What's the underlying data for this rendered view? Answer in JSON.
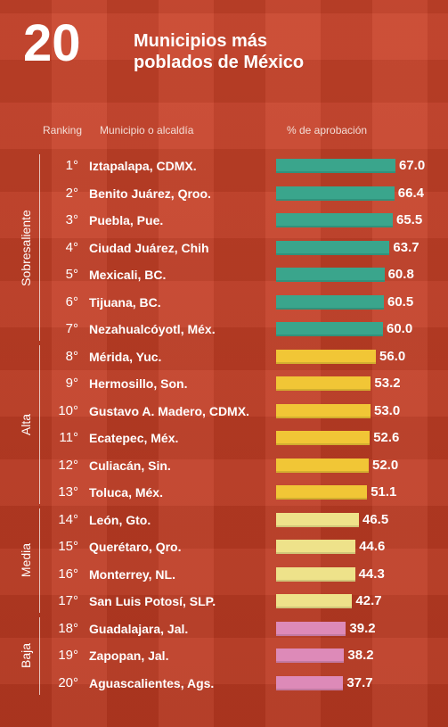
{
  "header": {
    "number": "20",
    "title_line1": "Municipios más",
    "title_line2": "poblados de México"
  },
  "columns": {
    "rank": "Ranking",
    "municipio": "Municipio o alcaldía",
    "aprobacion": "% de aprobación"
  },
  "colors": {
    "Sobresaliente": "#3aa58c",
    "Alta": "#f1c636",
    "Media": "#eee28a",
    "Baja": "#dd8ab8"
  },
  "chart_data": {
    "type": "bar",
    "orientation": "horizontal",
    "categories": [
      "Iztapalapa, CDMX.",
      "Benito Juárez, Qroo.",
      "Puebla, Pue.",
      "Ciudad Juárez, Chih",
      "Mexicali, BC.",
      "Tijuana, BC.",
      "Nezahualcóyotl, Méx.",
      "Mérida, Yuc.",
      "Hermosillo, Son.",
      "Gustavo A. Madero, CDMX.",
      "Ecatepec, Méx.",
      "Culiacán, Sin.",
      "Toluca, Méx.",
      "León, Gto.",
      "Querétaro, Qro.",
      "Monterrey, NL.",
      "San Luis Potosí, SLP.",
      "Guadalajara, Jal.",
      "Zapopan, Jal.",
      "Aguascalientes, Ags."
    ],
    "ranks": [
      "1°",
      "2°",
      "3°",
      "4°",
      "5°",
      "6°",
      "7°",
      "8°",
      "9°",
      "10°",
      "11°",
      "12°",
      "13°",
      "14°",
      "15°",
      "16°",
      "17°",
      "18°",
      "19°",
      "20°"
    ],
    "values": [
      67.0,
      66.4,
      65.5,
      63.7,
      60.8,
      60.5,
      60.0,
      56.0,
      53.2,
      53.0,
      52.6,
      52.0,
      51.1,
      46.5,
      44.6,
      44.3,
      42.7,
      39.2,
      38.2,
      37.7
    ],
    "value_labels": [
      "67.0",
      "66.4",
      "65.5",
      "63.7",
      "60.8",
      "60.5",
      "60.0",
      "56.0",
      "53.2",
      "53.0",
      "52.6",
      "52.0",
      "51.1",
      "46.5",
      "44.6",
      "44.3",
      "42.7",
      "39.2",
      "38.2",
      "37.7"
    ],
    "groups": [
      {
        "name": "Sobresaliente",
        "from": 0,
        "to": 6
      },
      {
        "name": "Alta",
        "from": 7,
        "to": 12
      },
      {
        "name": "Media",
        "from": 13,
        "to": 16
      },
      {
        "name": "Baja",
        "from": 17,
        "to": 19
      }
    ]
  }
}
